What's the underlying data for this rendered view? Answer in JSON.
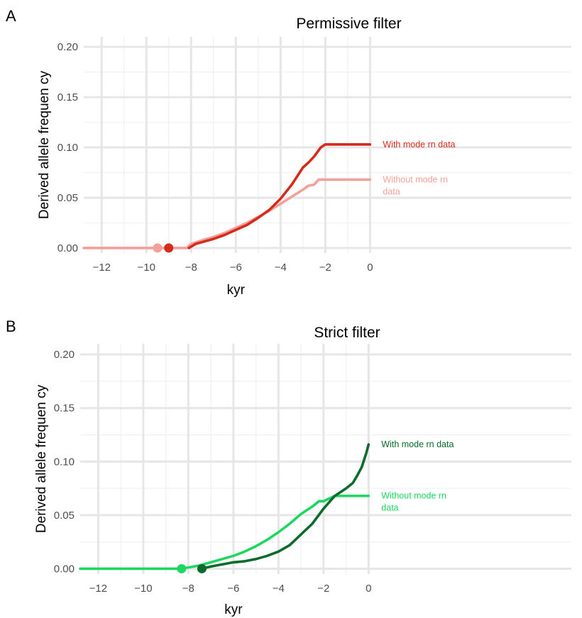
{
  "chart_data": [
    {
      "type": "line",
      "panel_label": "A",
      "title": "Permissive filter",
      "xlabel": "kyr",
      "ylabel": "Derived allele frequen cy",
      "xlim": [
        -12.8,
        9
      ],
      "ylim": [
        -0.005,
        0.21
      ],
      "xticks": [
        -12,
        -10,
        -8,
        -6,
        -4,
        -2,
        0
      ],
      "xtick_labels": [
        "−12",
        "−10",
        "−8",
        "−6",
        "−4",
        "−2",
        "0"
      ],
      "yticks": [
        0.0,
        0.05,
        0.1,
        0.15,
        0.2
      ],
      "ytick_labels": [
        "0.00",
        "0.05",
        "0.10",
        "0.15",
        "0.20"
      ],
      "grid": true,
      "series": [
        {
          "name": "Without mode rn data",
          "label_lines": [
            "Without mode rn",
            "data"
          ],
          "color": "#f4a09a",
          "x": [
            -12.8,
            -8.2,
            -8.0,
            -7.6,
            -7.0,
            -6.5,
            -6.0,
            -5.5,
            -5.0,
            -4.5,
            -4.0,
            -3.5,
            -3.0,
            -2.75,
            -2.5,
            -2.3,
            -1.5,
            0.0
          ],
          "y": [
            0.0,
            0.0,
            0.004,
            0.007,
            0.011,
            0.015,
            0.02,
            0.025,
            0.031,
            0.037,
            0.044,
            0.051,
            0.058,
            0.062,
            0.063,
            0.068,
            0.068,
            0.068
          ],
          "origin": {
            "x": -9.5,
            "y": 0.0
          }
        },
        {
          "name": "With mode rn data",
          "label_lines": [
            "With mode rn data"
          ],
          "color": "#d42b1a",
          "x": [
            -8.1,
            -7.8,
            -7.0,
            -6.5,
            -6.0,
            -5.5,
            -5.0,
            -4.5,
            -4.0,
            -3.5,
            -3.0,
            -2.75,
            -2.5,
            -2.2,
            -2.0,
            -1.0,
            0.0
          ],
          "y": [
            0.0,
            0.004,
            0.009,
            0.013,
            0.018,
            0.023,
            0.03,
            0.038,
            0.049,
            0.063,
            0.08,
            0.085,
            0.091,
            0.1,
            0.103,
            0.103,
            0.103
          ],
          "origin": {
            "x": -9.0,
            "y": 0.0
          }
        }
      ]
    },
    {
      "type": "line",
      "panel_label": "B",
      "title": "Strict filter",
      "xlabel": "kyr",
      "ylabel": "Derived allele frequen cy",
      "xlim": [
        -12.8,
        9
      ],
      "ylim": [
        -0.005,
        0.21
      ],
      "xticks": [
        -12,
        -10,
        -8,
        -6,
        -4,
        -2,
        0
      ],
      "xtick_labels": [
        "−12",
        "−10",
        "−8",
        "−6",
        "−4",
        "−2",
        "0"
      ],
      "yticks": [
        0.0,
        0.05,
        0.1,
        0.15,
        0.2
      ],
      "ytick_labels": [
        "0.00",
        "0.05",
        "0.10",
        "0.15",
        "0.20"
      ],
      "grid": true,
      "series": [
        {
          "name": "Without mode rn data",
          "label_lines": [
            "Without mode rn",
            "data"
          ],
          "color": "#1ed760",
          "x": [
            -12.8,
            -8.3,
            -7.5,
            -7.0,
            -6.5,
            -6.0,
            -5.5,
            -5.0,
            -4.5,
            -4.0,
            -3.5,
            -3.0,
            -2.5,
            -2.2,
            -2.0,
            -1.5,
            0.0
          ],
          "y": [
            0.0,
            0.0,
            0.003,
            0.006,
            0.009,
            0.012,
            0.016,
            0.021,
            0.027,
            0.034,
            0.042,
            0.051,
            0.058,
            0.063,
            0.063,
            0.068,
            0.068
          ],
          "origin": {
            "x": -8.3,
            "y": 0.0
          }
        },
        {
          "name": "With mode rn data",
          "label_lines": [
            "With mode rn data"
          ],
          "color": "#0a6b2a",
          "x": [
            -7.4,
            -7.0,
            -6.5,
            -6.0,
            -5.5,
            -5.0,
            -4.5,
            -4.0,
            -3.5,
            -3.0,
            -2.5,
            -2.0,
            -1.5,
            -1.0,
            -0.7,
            -0.5,
            -0.3,
            -0.1,
            0.0
          ],
          "y": [
            0.0,
            0.002,
            0.004,
            0.006,
            0.007,
            0.009,
            0.012,
            0.016,
            0.022,
            0.032,
            0.042,
            0.056,
            0.068,
            0.075,
            0.08,
            0.087,
            0.095,
            0.108,
            0.116
          ],
          "origin": {
            "x": -7.4,
            "y": 0.0
          }
        }
      ]
    }
  ]
}
